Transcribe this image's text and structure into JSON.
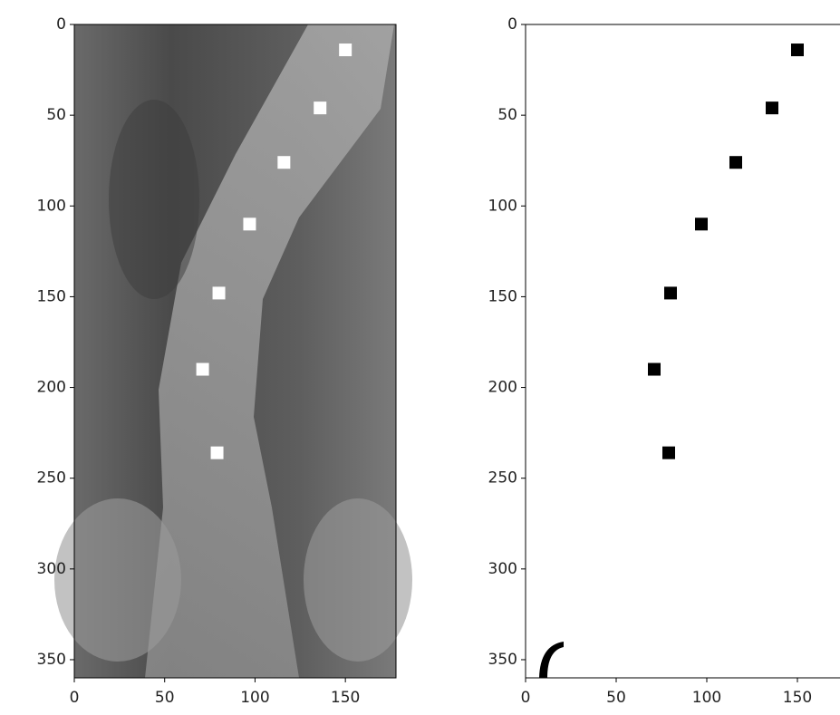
{
  "chart_data": [
    {
      "type": "scatter",
      "x": [
        150,
        136,
        116,
        97,
        80,
        71,
        79
      ],
      "y": [
        14,
        46,
        76,
        110,
        148,
        190,
        236
      ],
      "color": "#ffffff",
      "marker": "square",
      "xlim": [
        0,
        178
      ],
      "ylim": [
        360,
        0
      ],
      "xticks": [
        0,
        50,
        100,
        150
      ],
      "yticks": [
        0,
        50,
        100,
        150,
        200,
        250,
        300,
        350
      ]
    },
    {
      "type": "scatter",
      "x": [
        150,
        136,
        116,
        97,
        80,
        71,
        79
      ],
      "y": [
        14,
        46,
        76,
        110,
        148,
        190,
        236
      ],
      "color": "#000000",
      "marker": "square",
      "xlim": [
        0,
        178
      ],
      "ylim": [
        360,
        0
      ],
      "xticks": [
        0,
        50,
        100,
        150
      ],
      "yticks": [
        0,
        50,
        100,
        150,
        200,
        250,
        300,
        350
      ]
    }
  ]
}
